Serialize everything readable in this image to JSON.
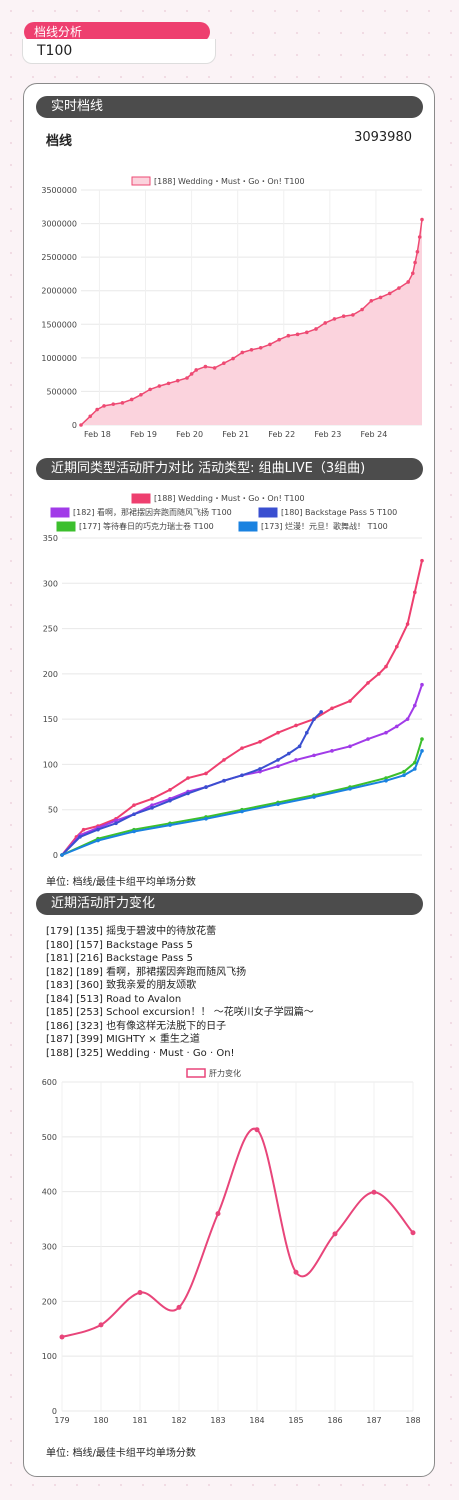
{
  "page": {
    "label": "档线分析",
    "tier": "T100"
  },
  "realtime": {
    "title": "实时档线",
    "metric_label": "档线",
    "metric_value": "3093980",
    "chart_data": {
      "type": "area",
      "legend": [
        "[188] Wedding・Must・Go・On!  T100"
      ],
      "x_ticks": [
        "Feb 18",
        "Feb 19",
        "Feb 20",
        "Feb 21",
        "Feb 22",
        "Feb 23",
        "Feb 24"
      ],
      "ylim": [
        0,
        3500000
      ],
      "y_ticks": [
        0,
        500000,
        1000000,
        1500000,
        2000000,
        2500000,
        3000000,
        3500000
      ],
      "x_range": [
        17.6,
        25.0
      ],
      "series": [
        {
          "name": "[188] Wedding・Must・Go・On!  T100",
          "color": "#ee4a73",
          "points": [
            [
              17.6,
              0
            ],
            [
              17.8,
              130000
            ],
            [
              17.95,
              230000
            ],
            [
              18.1,
              285000
            ],
            [
              18.3,
              310000
            ],
            [
              18.5,
              330000
            ],
            [
              18.7,
              380000
            ],
            [
              18.9,
              450000
            ],
            [
              19.1,
              530000
            ],
            [
              19.3,
              580000
            ],
            [
              19.5,
              620000
            ],
            [
              19.7,
              660000
            ],
            [
              19.9,
              700000
            ],
            [
              20.0,
              760000
            ],
            [
              20.1,
              820000
            ],
            [
              20.3,
              870000
            ],
            [
              20.5,
              850000
            ],
            [
              20.7,
              920000
            ],
            [
              20.9,
              990000
            ],
            [
              21.1,
              1080000
            ],
            [
              21.3,
              1120000
            ],
            [
              21.5,
              1150000
            ],
            [
              21.7,
              1200000
            ],
            [
              21.9,
              1270000
            ],
            [
              22.1,
              1330000
            ],
            [
              22.3,
              1350000
            ],
            [
              22.5,
              1380000
            ],
            [
              22.7,
              1430000
            ],
            [
              22.9,
              1520000
            ],
            [
              23.1,
              1580000
            ],
            [
              23.3,
              1620000
            ],
            [
              23.5,
              1640000
            ],
            [
              23.7,
              1720000
            ],
            [
              23.9,
              1850000
            ],
            [
              24.1,
              1900000
            ],
            [
              24.3,
              1960000
            ],
            [
              24.5,
              2040000
            ],
            [
              24.7,
              2130000
            ],
            [
              24.8,
              2260000
            ],
            [
              24.85,
              2420000
            ],
            [
              24.9,
              2580000
            ],
            [
              24.95,
              2800000
            ],
            [
              25.0,
              3060000
            ]
          ]
        }
      ]
    }
  },
  "compare": {
    "title": "近期同类型活动肝力对比  活动类型: 组曲LIVE（3组曲)",
    "unit": "单位: 档线/最佳卡组平均单场分数",
    "chart_data": {
      "type": "line",
      "ylim": [
        0,
        350
      ],
      "y_ticks": [
        0,
        50,
        100,
        150,
        200,
        250,
        300,
        350
      ],
      "xlim": [
        0,
        1
      ],
      "series": [
        {
          "name": "[188] Wedding・Must・Go・On!  T100",
          "color": "#ee3f6f",
          "points": [
            [
              0,
              0
            ],
            [
              0.04,
              20
            ],
            [
              0.06,
              28
            ],
            [
              0.1,
              32
            ],
            [
              0.15,
              40
            ],
            [
              0.2,
              55
            ],
            [
              0.25,
              62
            ],
            [
              0.3,
              72
            ],
            [
              0.35,
              85
            ],
            [
              0.4,
              90
            ],
            [
              0.45,
              105
            ],
            [
              0.5,
              118
            ],
            [
              0.55,
              125
            ],
            [
              0.6,
              135
            ],
            [
              0.65,
              143
            ],
            [
              0.7,
              150
            ],
            [
              0.75,
              162
            ],
            [
              0.8,
              170
            ],
            [
              0.85,
              190
            ],
            [
              0.88,
              200
            ],
            [
              0.9,
              208
            ],
            [
              0.93,
              230
            ],
            [
              0.96,
              255
            ],
            [
              0.98,
              290
            ],
            [
              1.0,
              325
            ]
          ]
        },
        {
          "name": "[182] 看啊，那裙摆因奔跑而随风飞扬  T100",
          "color": "#a13be8",
          "points": [
            [
              0,
              0
            ],
            [
              0.05,
              22
            ],
            [
              0.1,
              30
            ],
            [
              0.15,
              38
            ],
            [
              0.2,
              45
            ],
            [
              0.25,
              55
            ],
            [
              0.3,
              62
            ],
            [
              0.35,
              70
            ],
            [
              0.4,
              75
            ],
            [
              0.45,
              82
            ],
            [
              0.5,
              88
            ],
            [
              0.55,
              92
            ],
            [
              0.6,
              98
            ],
            [
              0.65,
              105
            ],
            [
              0.7,
              110
            ],
            [
              0.75,
              115
            ],
            [
              0.8,
              120
            ],
            [
              0.85,
              128
            ],
            [
              0.9,
              135
            ],
            [
              0.93,
              142
            ],
            [
              0.96,
              150
            ],
            [
              0.98,
              165
            ],
            [
              1.0,
              188
            ]
          ]
        },
        {
          "name": "[180] Backstage Pass 5  T100",
          "color": "#3a4fd0",
          "points": [
            [
              0,
              0
            ],
            [
              0.05,
              20
            ],
            [
              0.1,
              28
            ],
            [
              0.15,
              35
            ],
            [
              0.2,
              45
            ],
            [
              0.25,
              52
            ],
            [
              0.3,
              60
            ],
            [
              0.35,
              68
            ],
            [
              0.4,
              75
            ],
            [
              0.45,
              82
            ],
            [
              0.5,
              88
            ],
            [
              0.55,
              95
            ],
            [
              0.6,
              105
            ],
            [
              0.63,
              112
            ],
            [
              0.66,
              120
            ],
            [
              0.68,
              135
            ],
            [
              0.7,
              150
            ],
            [
              0.72,
              158
            ]
          ]
        },
        {
          "name": "[177] 等待春日的巧克力瑞士卷  T100",
          "color": "#3cbf2d",
          "points": [
            [
              0,
              0
            ],
            [
              0.1,
              18
            ],
            [
              0.2,
              28
            ],
            [
              0.3,
              35
            ],
            [
              0.4,
              42
            ],
            [
              0.5,
              50
            ],
            [
              0.6,
              58
            ],
            [
              0.7,
              66
            ],
            [
              0.8,
              75
            ],
            [
              0.9,
              85
            ],
            [
              0.95,
              92
            ],
            [
              0.98,
              102
            ],
            [
              1.0,
              128
            ]
          ]
        },
        {
          "name": "[173] 烂漫！元旦！歌舞战！  T100",
          "color": "#1a82e0",
          "points": [
            [
              0,
              0
            ],
            [
              0.1,
              16
            ],
            [
              0.2,
              26
            ],
            [
              0.3,
              33
            ],
            [
              0.4,
              40
            ],
            [
              0.5,
              48
            ],
            [
              0.6,
              56
            ],
            [
              0.7,
              64
            ],
            [
              0.8,
              73
            ],
            [
              0.9,
              82
            ],
            [
              0.95,
              88
            ],
            [
              0.98,
              95
            ],
            [
              1.0,
              115
            ]
          ]
        }
      ]
    }
  },
  "recent": {
    "title": "近期活动肝力变化",
    "unit": "单位: 档线/最佳卡组平均单场分数",
    "events": [
      "[179]  [135]  摇曳于碧波中的待放花蕾",
      "[180]  [157]  Backstage  Pass  5",
      "[181]  [216]  Backstage  Pass  5",
      "[182]  [189]  看啊，那裙摆因奔跑而随风飞扬",
      "[183]  [360]  致我亲爱的朋友颂歌",
      "[184]  [513]  Road  to  Avalon",
      "[185]  [253]  School  excursion！！ ～花咲川女子学园篇～",
      "[186]  [323]  也有像这样无法脱下的日子",
      "[187]  [399]  MIGHTY × 重生之道",
      "[188]  [325]  Wedding · Must · Go · On!"
    ],
    "chart_data": {
      "type": "line",
      "legend": [
        "肝力变化"
      ],
      "categories": [
        "179",
        "180",
        "181",
        "182",
        "183",
        "184",
        "185",
        "186",
        "187",
        "188"
      ],
      "values": [
        135,
        157,
        216,
        189,
        360,
        513,
        253,
        323,
        399,
        325
      ],
      "ylim": [
        0,
        600
      ],
      "y_ticks": [
        0,
        100,
        200,
        300,
        400,
        500,
        600
      ],
      "series": [
        {
          "name": "肝力变化",
          "color": "#e8457a"
        }
      ]
    }
  }
}
